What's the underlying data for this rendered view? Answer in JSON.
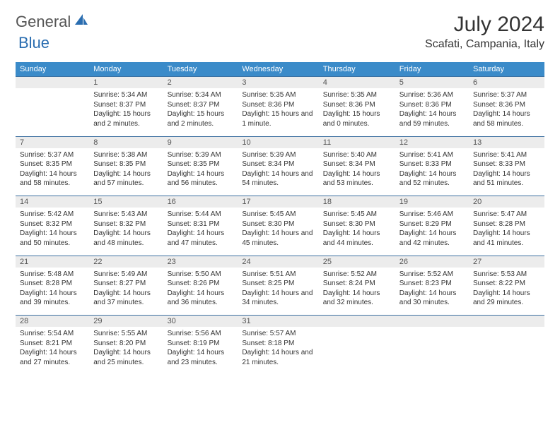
{
  "logo": {
    "text1": "General",
    "text2": "Blue"
  },
  "title": "July 2024",
  "location": "Scafati, Campania, Italy",
  "colors": {
    "header_bg": "#3b8bc9",
    "header_text": "#ffffff",
    "daynum_bg": "#ececec",
    "border": "#3b6fa0",
    "logo_gray": "#6a6a6a",
    "logo_blue": "#2a6db0"
  },
  "day_headers": [
    "Sunday",
    "Monday",
    "Tuesday",
    "Wednesday",
    "Thursday",
    "Friday",
    "Saturday"
  ],
  "weeks": [
    {
      "nums": [
        "",
        "1",
        "2",
        "3",
        "4",
        "5",
        "6"
      ],
      "cells": [
        {},
        {
          "sunrise": "Sunrise: 5:34 AM",
          "sunset": "Sunset: 8:37 PM",
          "daylight": "Daylight: 15 hours and 2 minutes."
        },
        {
          "sunrise": "Sunrise: 5:34 AM",
          "sunset": "Sunset: 8:37 PM",
          "daylight": "Daylight: 15 hours and 2 minutes."
        },
        {
          "sunrise": "Sunrise: 5:35 AM",
          "sunset": "Sunset: 8:36 PM",
          "daylight": "Daylight: 15 hours and 1 minute."
        },
        {
          "sunrise": "Sunrise: 5:35 AM",
          "sunset": "Sunset: 8:36 PM",
          "daylight": "Daylight: 15 hours and 0 minutes."
        },
        {
          "sunrise": "Sunrise: 5:36 AM",
          "sunset": "Sunset: 8:36 PM",
          "daylight": "Daylight: 14 hours and 59 minutes."
        },
        {
          "sunrise": "Sunrise: 5:37 AM",
          "sunset": "Sunset: 8:36 PM",
          "daylight": "Daylight: 14 hours and 58 minutes."
        }
      ]
    },
    {
      "nums": [
        "7",
        "8",
        "9",
        "10",
        "11",
        "12",
        "13"
      ],
      "cells": [
        {
          "sunrise": "Sunrise: 5:37 AM",
          "sunset": "Sunset: 8:35 PM",
          "daylight": "Daylight: 14 hours and 58 minutes."
        },
        {
          "sunrise": "Sunrise: 5:38 AM",
          "sunset": "Sunset: 8:35 PM",
          "daylight": "Daylight: 14 hours and 57 minutes."
        },
        {
          "sunrise": "Sunrise: 5:39 AM",
          "sunset": "Sunset: 8:35 PM",
          "daylight": "Daylight: 14 hours and 56 minutes."
        },
        {
          "sunrise": "Sunrise: 5:39 AM",
          "sunset": "Sunset: 8:34 PM",
          "daylight": "Daylight: 14 hours and 54 minutes."
        },
        {
          "sunrise": "Sunrise: 5:40 AM",
          "sunset": "Sunset: 8:34 PM",
          "daylight": "Daylight: 14 hours and 53 minutes."
        },
        {
          "sunrise": "Sunrise: 5:41 AM",
          "sunset": "Sunset: 8:33 PM",
          "daylight": "Daylight: 14 hours and 52 minutes."
        },
        {
          "sunrise": "Sunrise: 5:41 AM",
          "sunset": "Sunset: 8:33 PM",
          "daylight": "Daylight: 14 hours and 51 minutes."
        }
      ]
    },
    {
      "nums": [
        "14",
        "15",
        "16",
        "17",
        "18",
        "19",
        "20"
      ],
      "cells": [
        {
          "sunrise": "Sunrise: 5:42 AM",
          "sunset": "Sunset: 8:32 PM",
          "daylight": "Daylight: 14 hours and 50 minutes."
        },
        {
          "sunrise": "Sunrise: 5:43 AM",
          "sunset": "Sunset: 8:32 PM",
          "daylight": "Daylight: 14 hours and 48 minutes."
        },
        {
          "sunrise": "Sunrise: 5:44 AM",
          "sunset": "Sunset: 8:31 PM",
          "daylight": "Daylight: 14 hours and 47 minutes."
        },
        {
          "sunrise": "Sunrise: 5:45 AM",
          "sunset": "Sunset: 8:30 PM",
          "daylight": "Daylight: 14 hours and 45 minutes."
        },
        {
          "sunrise": "Sunrise: 5:45 AM",
          "sunset": "Sunset: 8:30 PM",
          "daylight": "Daylight: 14 hours and 44 minutes."
        },
        {
          "sunrise": "Sunrise: 5:46 AM",
          "sunset": "Sunset: 8:29 PM",
          "daylight": "Daylight: 14 hours and 42 minutes."
        },
        {
          "sunrise": "Sunrise: 5:47 AM",
          "sunset": "Sunset: 8:28 PM",
          "daylight": "Daylight: 14 hours and 41 minutes."
        }
      ]
    },
    {
      "nums": [
        "21",
        "22",
        "23",
        "24",
        "25",
        "26",
        "27"
      ],
      "cells": [
        {
          "sunrise": "Sunrise: 5:48 AM",
          "sunset": "Sunset: 8:28 PM",
          "daylight": "Daylight: 14 hours and 39 minutes."
        },
        {
          "sunrise": "Sunrise: 5:49 AM",
          "sunset": "Sunset: 8:27 PM",
          "daylight": "Daylight: 14 hours and 37 minutes."
        },
        {
          "sunrise": "Sunrise: 5:50 AM",
          "sunset": "Sunset: 8:26 PM",
          "daylight": "Daylight: 14 hours and 36 minutes."
        },
        {
          "sunrise": "Sunrise: 5:51 AM",
          "sunset": "Sunset: 8:25 PM",
          "daylight": "Daylight: 14 hours and 34 minutes."
        },
        {
          "sunrise": "Sunrise: 5:52 AM",
          "sunset": "Sunset: 8:24 PM",
          "daylight": "Daylight: 14 hours and 32 minutes."
        },
        {
          "sunrise": "Sunrise: 5:52 AM",
          "sunset": "Sunset: 8:23 PM",
          "daylight": "Daylight: 14 hours and 30 minutes."
        },
        {
          "sunrise": "Sunrise: 5:53 AM",
          "sunset": "Sunset: 8:22 PM",
          "daylight": "Daylight: 14 hours and 29 minutes."
        }
      ]
    },
    {
      "nums": [
        "28",
        "29",
        "30",
        "31",
        "",
        "",
        ""
      ],
      "cells": [
        {
          "sunrise": "Sunrise: 5:54 AM",
          "sunset": "Sunset: 8:21 PM",
          "daylight": "Daylight: 14 hours and 27 minutes."
        },
        {
          "sunrise": "Sunrise: 5:55 AM",
          "sunset": "Sunset: 8:20 PM",
          "daylight": "Daylight: 14 hours and 25 minutes."
        },
        {
          "sunrise": "Sunrise: 5:56 AM",
          "sunset": "Sunset: 8:19 PM",
          "daylight": "Daylight: 14 hours and 23 minutes."
        },
        {
          "sunrise": "Sunrise: 5:57 AM",
          "sunset": "Sunset: 8:18 PM",
          "daylight": "Daylight: 14 hours and 21 minutes."
        },
        {},
        {},
        {}
      ]
    }
  ]
}
